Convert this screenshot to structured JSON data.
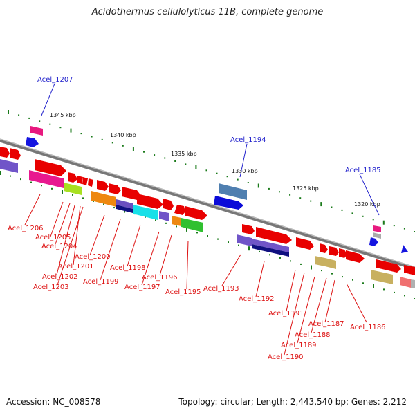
{
  "title": "Acidothermus cellulolyticus 11B, complete genome",
  "footer": {
    "accession": "Accession: NC_008578",
    "topology": "Topology: circular; Length: 2,443,540 bp; Genes: 2,212"
  },
  "colors": {
    "backbone": "#888888",
    "forward_label": "#2222cc",
    "reverse_label": "#dd1111",
    "scale_dots": "#1a7a1a",
    "scale_text": "#111111"
  },
  "scale_labels": [
    "1345 kbp",
    "1340 kbp",
    "1335 kbp",
    "1330 kbp",
    "1325 kbp",
    "1320 kbp"
  ],
  "gene_labels_forward": [
    "Acel_1207",
    "Acel_1194",
    "Acel_1185"
  ],
  "gene_labels_reverse": [
    "Acel_1206",
    "Acel_1205",
    "Acel_1204",
    "Acel_1202",
    "Acel_1203",
    "Acel_1201",
    "Acel_1200",
    "Acel_1199",
    "Acel_1198",
    "Acel_1197",
    "Acel_1196",
    "Acel_1195",
    "Acel_1193",
    "Acel_1192",
    "Acel_1191",
    "Acel_1190",
    "Acel_1189",
    "Acel_1188",
    "Acel_1187",
    "Acel_1186"
  ]
}
